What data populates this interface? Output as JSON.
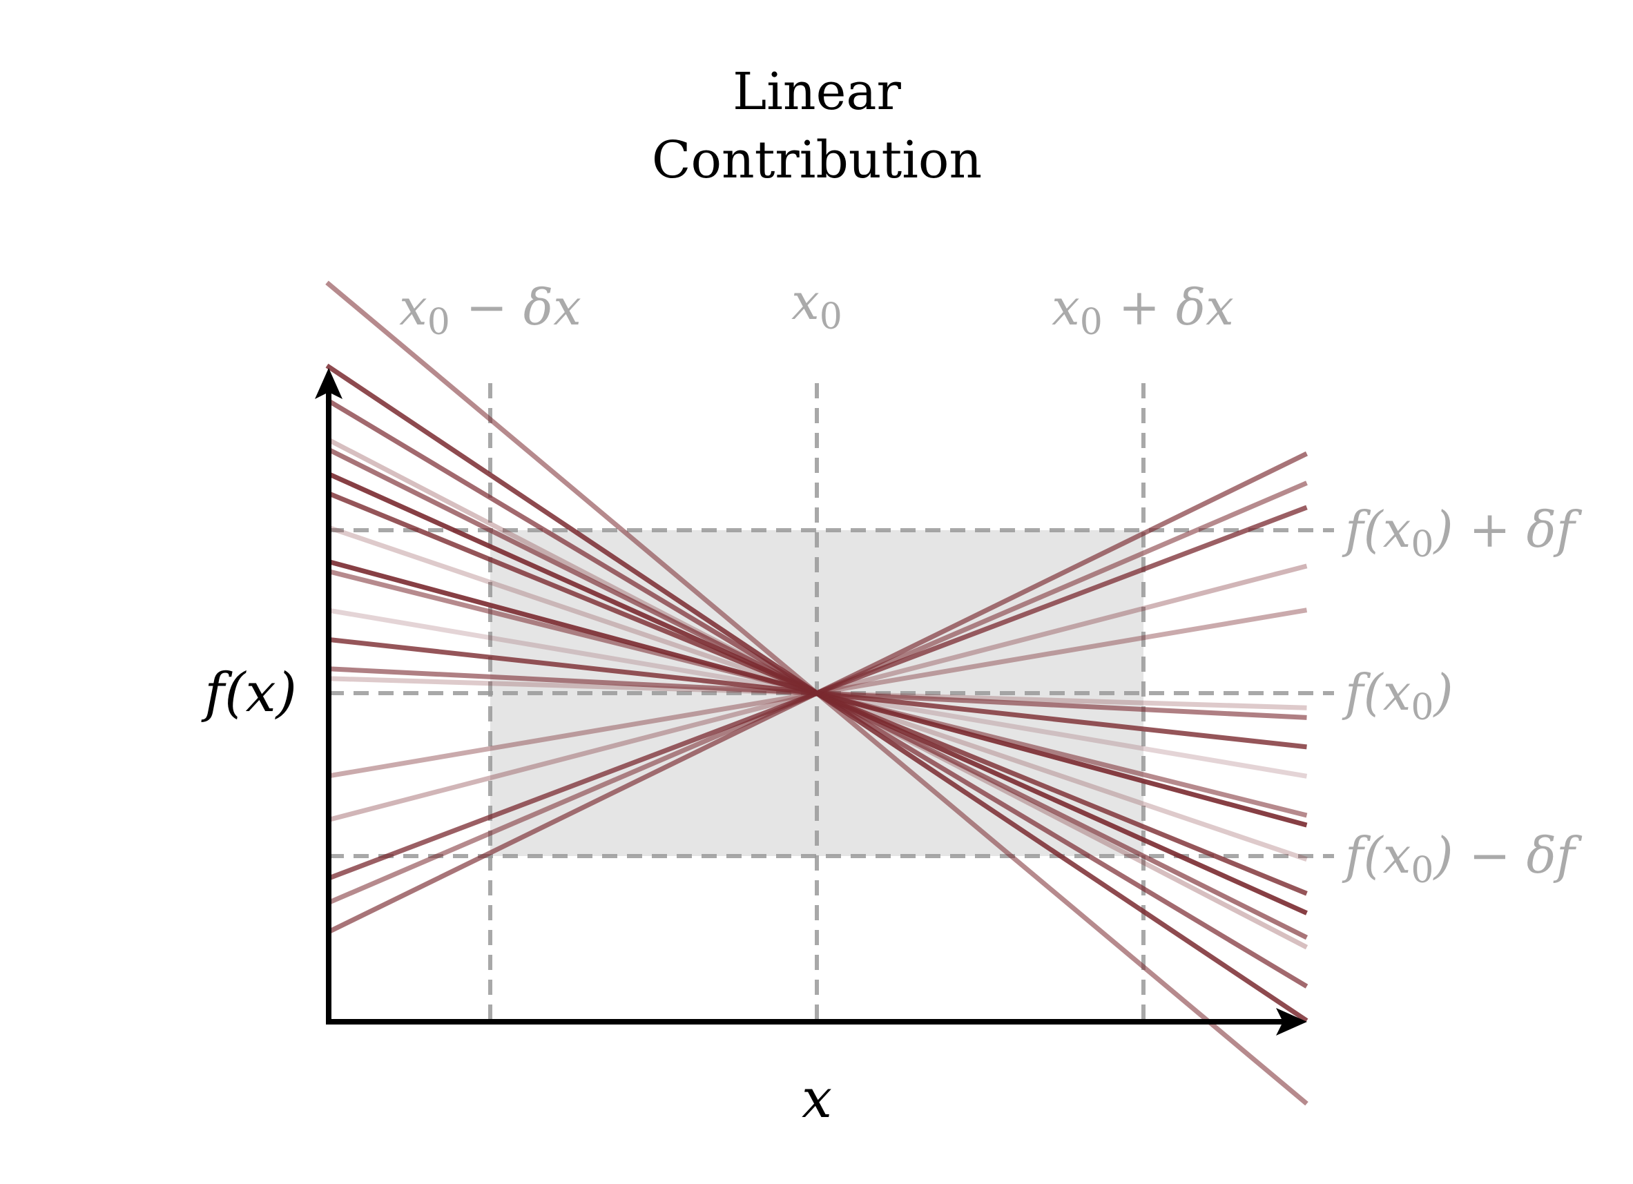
{
  "title": {
    "line1": "Linear",
    "line2": "Contribution"
  },
  "axes": {
    "x_label": "x",
    "y_label": "f(x)"
  },
  "top_labels": {
    "left": {
      "main": "x",
      "sub": "0",
      "rest": " − δx"
    },
    "center": {
      "main": "x",
      "sub": "0",
      "rest": ""
    },
    "right": {
      "main": "x",
      "sub": "0",
      "rest": " + δx"
    }
  },
  "right_labels": {
    "upper": {
      "pre": "f(x",
      "sub": "0",
      "post": ") + δf"
    },
    "middle": {
      "pre": "f(x",
      "sub": "0",
      "post": ")"
    },
    "lower": {
      "pre": "f(x",
      "sub": "0",
      "post": ") − δf"
    }
  },
  "colors": {
    "line": "#7a2a30",
    "guide": "#999999",
    "label_gray": "#aaaaaa",
    "box_fill": "#e5e5e5",
    "axis": "#000000"
  },
  "chart_data": {
    "type": "line",
    "description_units": "x in units of δx relative to x0 (x0 = 0); f in units of δf relative to f(x0) (f(x0) = 0)",
    "x0": 0,
    "f0": 0,
    "x_range": [
      -1.5,
      1.5
    ],
    "y_range": [
      -2.0,
      2.0
    ],
    "box": {
      "x": [
        -1,
        1
      ],
      "f": [
        -1,
        1
      ]
    },
    "lines": [
      {
        "slope": -0.84,
        "opacity": 0.55
      },
      {
        "slope": -0.67,
        "opacity": 0.85
      },
      {
        "slope": -0.6,
        "opacity": 0.7
      },
      {
        "slope": -0.52,
        "opacity": 0.3
      },
      {
        "slope": -0.5,
        "opacity": 0.65
      },
      {
        "slope": -0.45,
        "opacity": 0.9
      },
      {
        "slope": -0.41,
        "opacity": 0.8
      },
      {
        "slope": -0.34,
        "opacity": 0.25
      },
      {
        "slope": -0.27,
        "opacity": 0.9
      },
      {
        "slope": -0.25,
        "opacity": 0.55
      },
      {
        "slope": -0.17,
        "opacity": 0.2
      },
      {
        "slope": -0.11,
        "opacity": 0.8
      },
      {
        "slope": -0.05,
        "opacity": 0.6
      },
      {
        "slope": -0.03,
        "opacity": 0.25
      },
      {
        "slope": 0.17,
        "opacity": 0.4
      },
      {
        "slope": 0.26,
        "opacity": 0.35
      },
      {
        "slope": 0.38,
        "opacity": 0.75
      },
      {
        "slope": 0.43,
        "opacity": 0.55
      },
      {
        "slope": 0.49,
        "opacity": 0.65
      }
    ]
  }
}
